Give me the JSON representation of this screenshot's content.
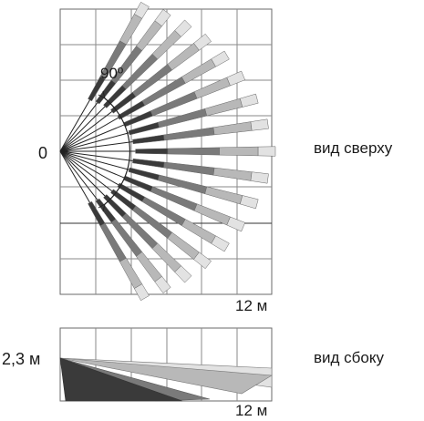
{
  "top_view": {
    "label": "вид сверху",
    "origin_label": "0",
    "angle_label": "90º",
    "distance_label": "12 м"
  },
  "side_view": {
    "label": "вид сбоку",
    "height_label": "2,3 м",
    "distance_label": "12 м"
  },
  "colors": {
    "grid": "#555555",
    "zone_dark": "#3a3a3a",
    "zone_mid": "#7a7a7a",
    "zone_light": "#b8b8b8",
    "zone_pale": "#e2e2e2"
  }
}
